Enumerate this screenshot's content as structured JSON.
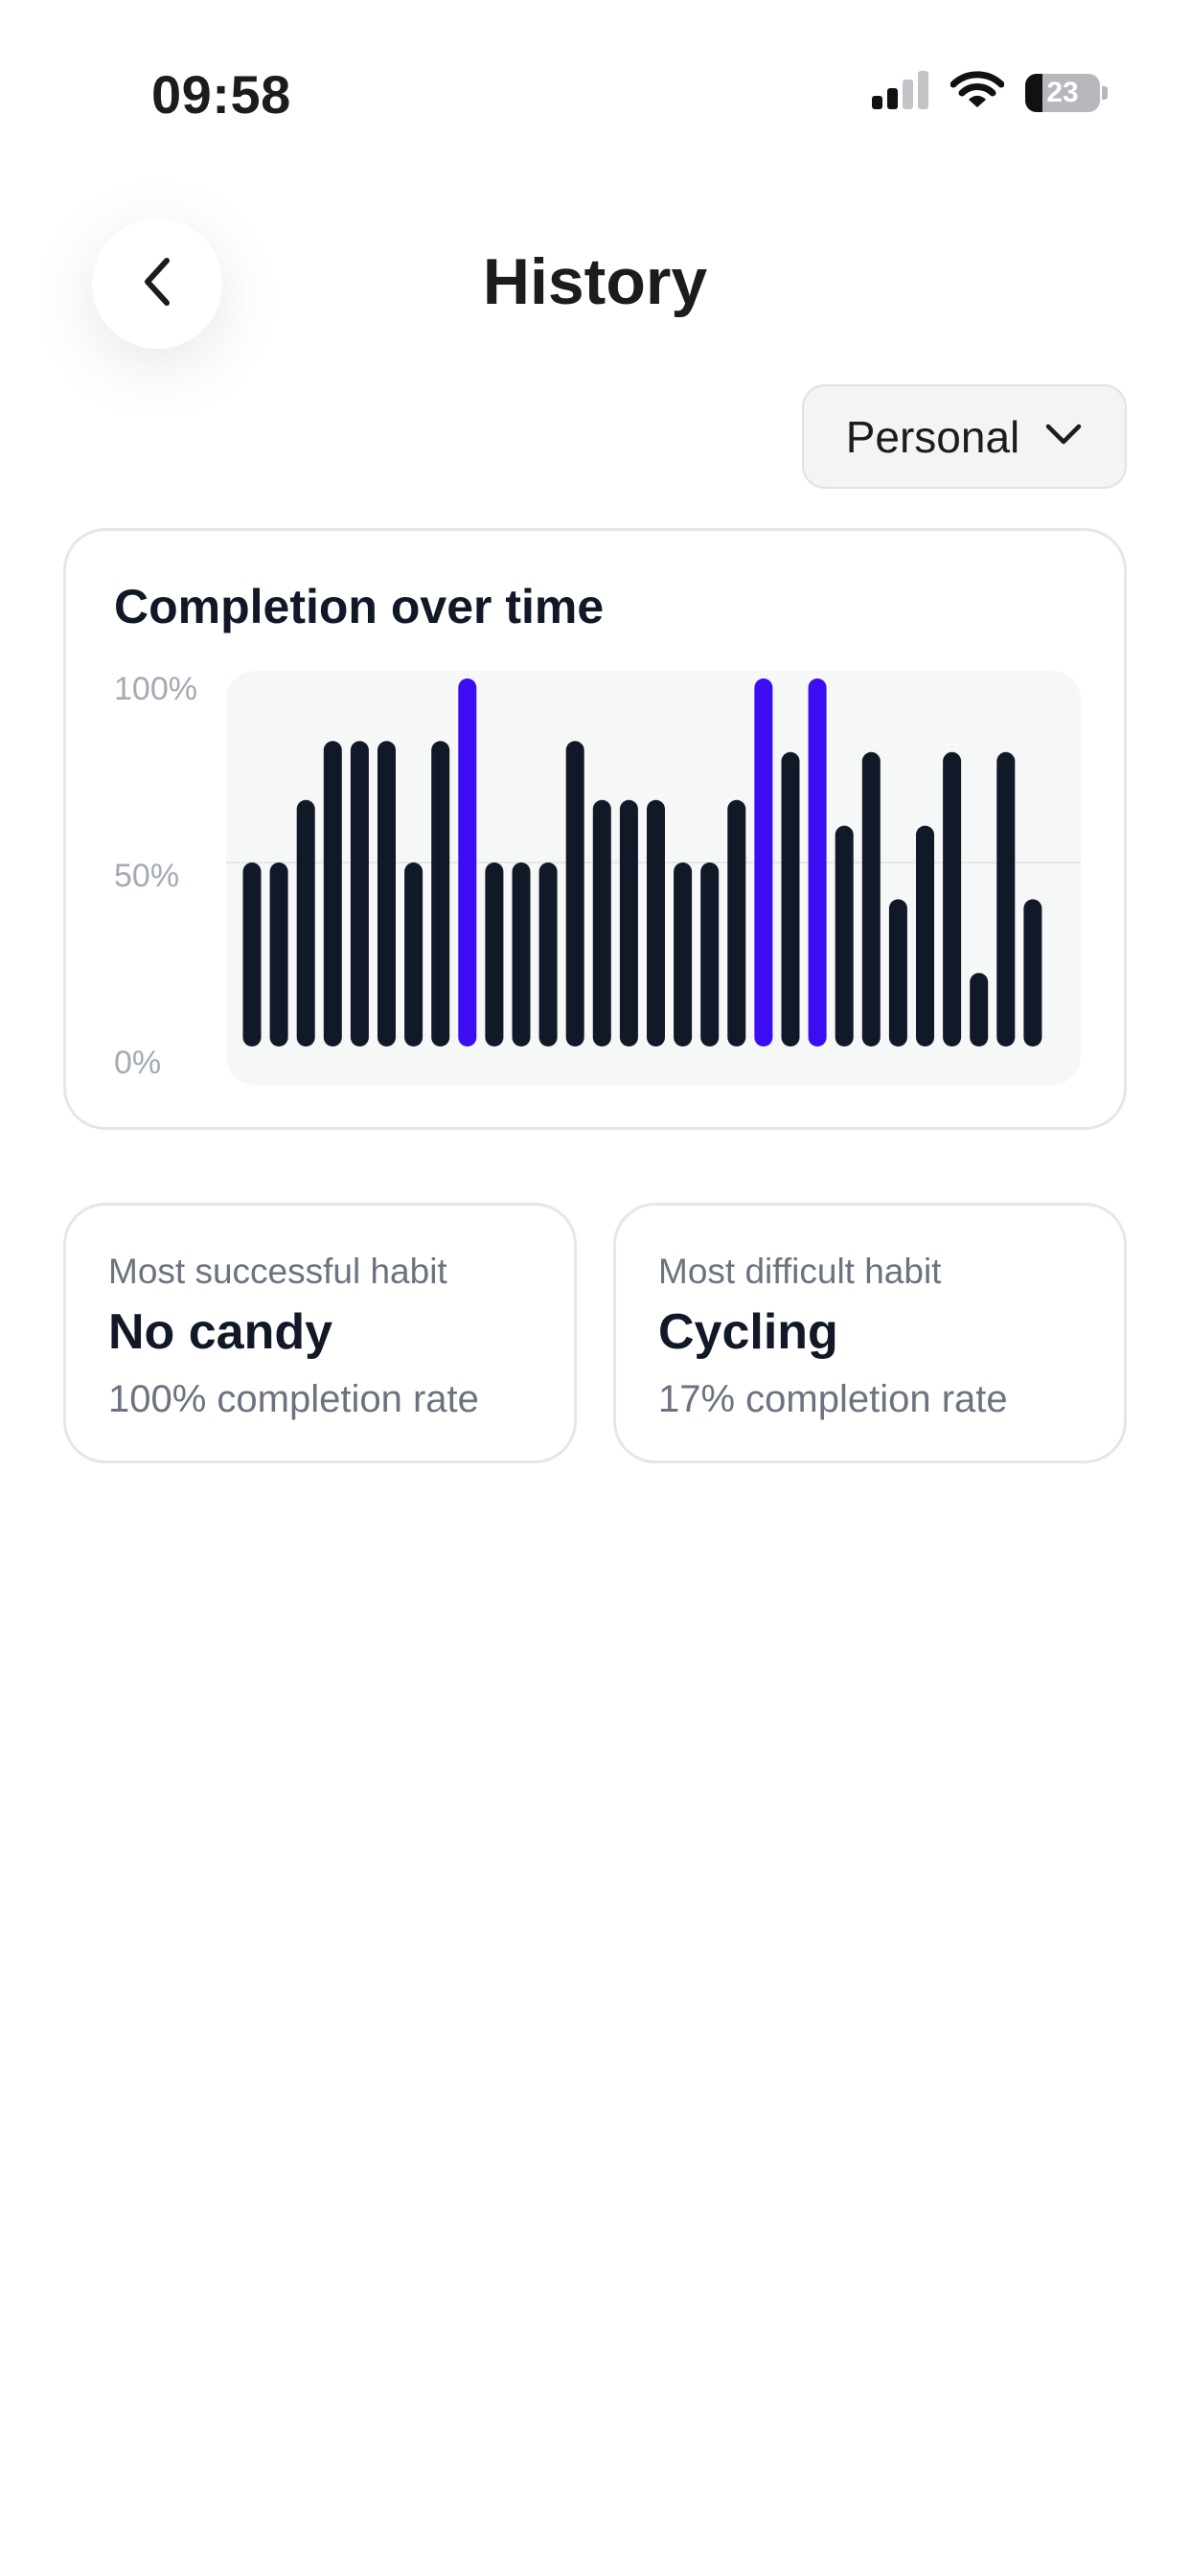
{
  "status_bar": {
    "time": "09:58",
    "battery_level": "23",
    "battery_fraction": 0.23,
    "icons": [
      "signal-icon",
      "wifi-icon",
      "battery-icon"
    ]
  },
  "header": {
    "title": "History",
    "back_icon": "chevron-left-icon"
  },
  "filter": {
    "selected": "Personal",
    "icon": "chevron-down-icon"
  },
  "chart_card": {
    "title": "Completion over time"
  },
  "chart_data": {
    "type": "bar",
    "title": "Completion over time",
    "ylim": [
      0,
      100
    ],
    "y_ticks": [
      "100%",
      "50%",
      "0%"
    ],
    "grid": "horizontal line at 50%",
    "colors": {
      "default": "#111827",
      "highlight": "#3c0cf2"
    },
    "values": [
      50,
      50,
      67,
      83,
      83,
      83,
      50,
      83,
      100,
      50,
      50,
      50,
      83,
      67,
      67,
      67,
      50,
      50,
      67,
      100,
      80,
      100,
      60,
      80,
      40,
      60,
      80,
      20,
      80,
      40
    ],
    "highlighted": [
      8,
      19,
      21
    ]
  },
  "stats": {
    "most_successful": {
      "caption": "Most successful habit",
      "habit": "No candy",
      "rate": "100% completion rate"
    },
    "most_difficult": {
      "caption": "Most difficult habit",
      "habit": "Cycling",
      "rate": "17% completion rate"
    }
  }
}
